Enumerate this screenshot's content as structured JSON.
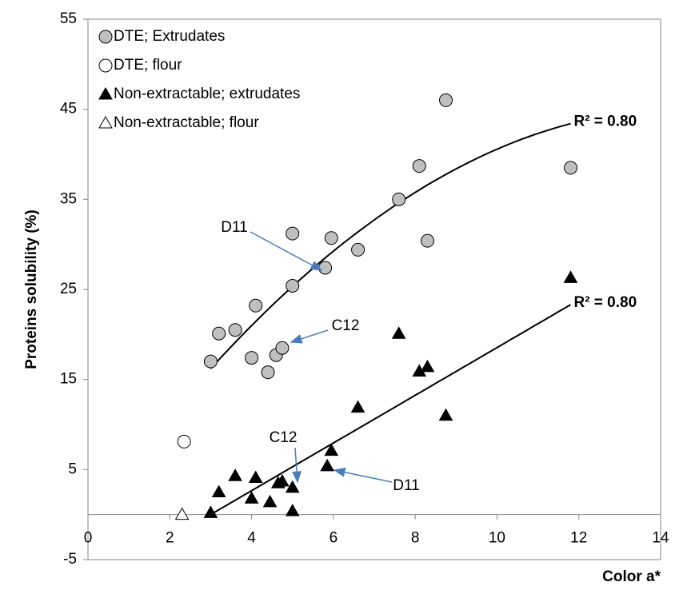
{
  "chart_data": {
    "type": "scatter",
    "xlabel": "Color a*",
    "ylabel": "Proteins solubility (%)",
    "xlim": [
      0,
      14
    ],
    "xticks": [
      0,
      2,
      4,
      6,
      8,
      10,
      12,
      14
    ],
    "ylim": [
      -5,
      55
    ],
    "yticks": [
      -5,
      5,
      15,
      25,
      35,
      45,
      55
    ],
    "legend": "top-left",
    "series": [
      {
        "name": "DTE; Extrudates",
        "marker": "circle",
        "color": "#bfbfbf",
        "x": [
          3.0,
          3.2,
          3.6,
          4.0,
          4.1,
          4.4,
          4.6,
          4.75,
          5.0,
          5.0,
          5.8,
          5.95,
          6.6,
          7.6,
          8.1,
          8.3,
          8.75,
          11.8
        ],
        "values": [
          17.0,
          20.1,
          20.5,
          17.4,
          23.2,
          15.8,
          17.7,
          18.5,
          25.4,
          31.2,
          27.4,
          30.7,
          29.4,
          35.0,
          38.7,
          30.4,
          46.0,
          38.5
        ]
      },
      {
        "name": "DTE; flour",
        "marker": "circle",
        "color": "#ffffff",
        "x": [
          2.35
        ],
        "values": [
          8.1
        ]
      },
      {
        "name": "Non-extractable; extrudates",
        "marker": "triangle",
        "color": "#000000",
        "x": [
          3.0,
          3.2,
          3.6,
          4.0,
          4.1,
          4.45,
          4.65,
          4.75,
          5.0,
          5.0,
          5.85,
          5.95,
          6.6,
          7.6,
          8.1,
          8.3,
          8.75,
          11.8
        ],
        "values": [
          0.2,
          2.5,
          4.3,
          1.8,
          4.1,
          1.4,
          3.5,
          3.7,
          3.0,
          0.4,
          5.4,
          7.1,
          11.9,
          20.1,
          15.9,
          16.4,
          11.0,
          26.3
        ]
      },
      {
        "name": "Non-extractable; flour",
        "marker": "triangle",
        "color": "#ffffff",
        "x": [
          2.3
        ],
        "values": [
          0
        ]
      }
    ],
    "trendlines": [
      {
        "label": "R² = 0.80",
        "coefficients": [
          -0.7365,
          6.295,
          -0.2165
        ],
        "xrange": [
          3.0,
          11.8
        ]
      },
      {
        "label": "R² = 0.80",
        "coefficients": [
          -7.94,
          2.648
        ],
        "xrange": [
          3.0,
          11.8
        ]
      }
    ],
    "annotations": [
      "D11",
      "C12",
      "C12",
      "D11"
    ]
  }
}
